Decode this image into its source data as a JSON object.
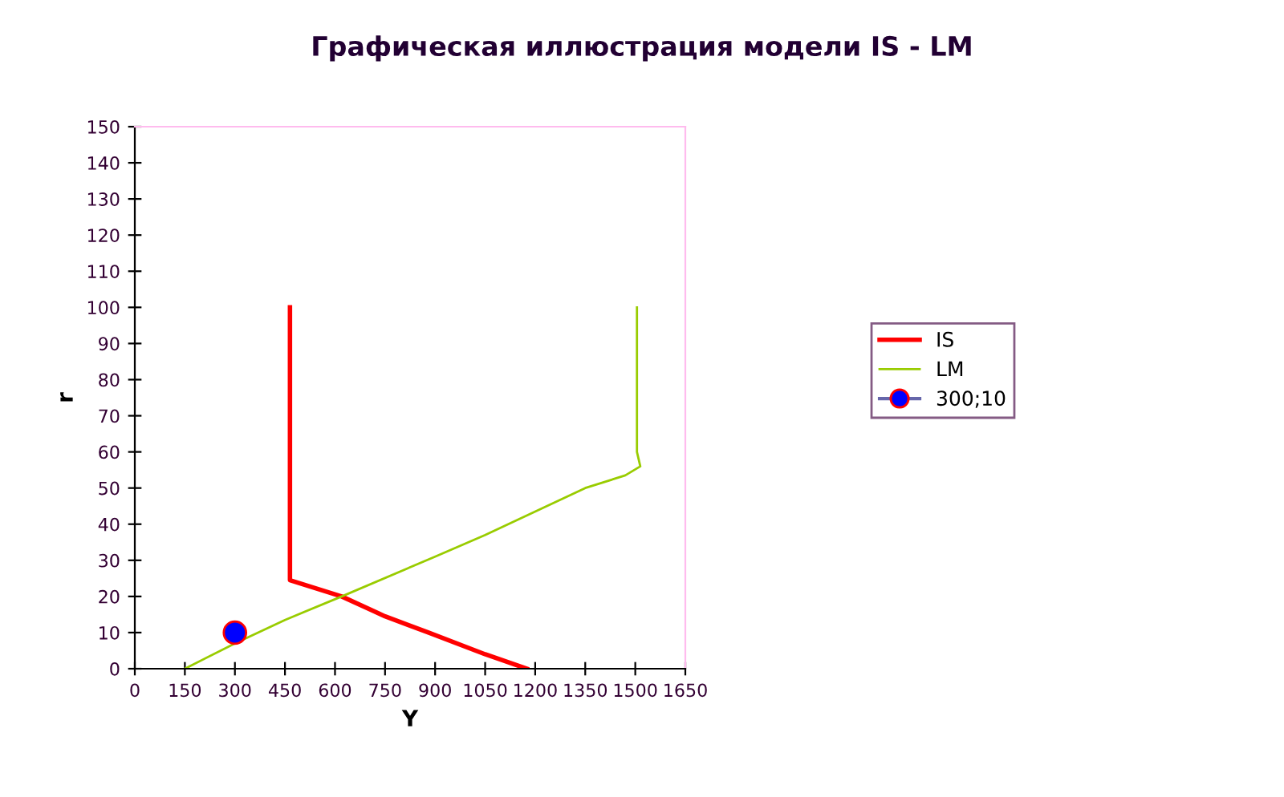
{
  "chart_data": {
    "type": "line",
    "title": "Графическая иллюстрация модели IS - LM",
    "xlabel": "Y",
    "ylabel": "r",
    "xlim": [
      0,
      1650
    ],
    "ylim": [
      0,
      150
    ],
    "xticks": [
      0,
      150,
      300,
      450,
      600,
      750,
      900,
      1050,
      1200,
      1350,
      1500,
      1650
    ],
    "yticks": [
      0,
      10,
      20,
      30,
      40,
      50,
      60,
      70,
      80,
      90,
      100,
      110,
      120,
      130,
      140,
      150
    ],
    "grid": false,
    "legend": "right",
    "series": [
      {
        "name": "IS",
        "color": "#ff0000",
        "x": [
          465,
          465,
          620,
          750,
          880,
          1050,
          1175
        ],
        "values": [
          100,
          24.5,
          20,
          14.5,
          10,
          4,
          0
        ]
      },
      {
        "name": "LM",
        "color": "#99cc00",
        "x": [
          150,
          300,
          450,
          620,
          900,
          1050,
          1200,
          1350,
          1470,
          1515,
          1505,
          1505
        ],
        "values": [
          0,
          7,
          13.5,
          20,
          31,
          37,
          43.5,
          50,
          53.5,
          56,
          60,
          100
        ]
      },
      {
        "name": "300;10",
        "type": "scatter",
        "color": "#0000ff",
        "marker": "circle",
        "x": [
          300
        ],
        "values": [
          10
        ]
      }
    ]
  }
}
